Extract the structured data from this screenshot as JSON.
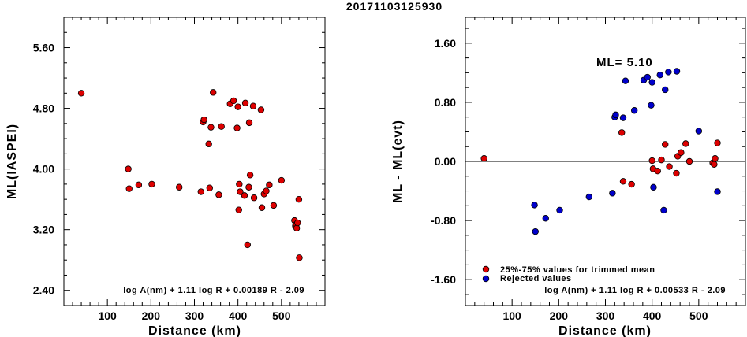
{
  "figure": {
    "title": "20171103125930"
  },
  "colors": {
    "accepted": "#dd0000",
    "rejected": "#0000cc",
    "axis": "#000000"
  },
  "chart_data": [
    {
      "type": "scatter",
      "xlabel": "Distance (km)",
      "ylabel": "ML(IASPEI)",
      "xlim": [
        0,
        600
      ],
      "ylim": [
        2.2,
        6.0
      ],
      "xticks": [
        100,
        200,
        300,
        400,
        500
      ],
      "xtick_labels": [
        "100",
        "200",
        "300",
        "400",
        "500"
      ],
      "yticks": [
        2.4,
        3.2,
        4.0,
        4.8,
        5.6
      ],
      "ytick_labels": [
        "2.40",
        "3.20",
        "4.00",
        "4.80",
        "5.60"
      ],
      "formula": "log A(nm) + 1.11 log R + 0.00189 R - 2.09",
      "series": [
        {
          "color": "#dd0000",
          "points": [
            [
              40,
              5.0
            ],
            [
              148,
              4.0
            ],
            [
              150,
              3.74
            ],
            [
              172,
              3.79
            ],
            [
              202,
              3.8
            ],
            [
              265,
              3.76
            ],
            [
              315,
              3.7
            ],
            [
              320,
              4.62
            ],
            [
              322,
              4.65
            ],
            [
              333,
              4.33
            ],
            [
              335,
              3.75
            ],
            [
              338,
              4.55
            ],
            [
              343,
              5.01
            ],
            [
              356,
              3.66
            ],
            [
              362,
              4.56
            ],
            [
              382,
              4.86
            ],
            [
              390,
              4.9
            ],
            [
              398,
              4.54
            ],
            [
              400,
              4.82
            ],
            [
              402,
              3.46
            ],
            [
              403,
              3.8
            ],
            [
              405,
              3.7
            ],
            [
              415,
              3.65
            ],
            [
              417,
              4.87
            ],
            [
              422,
              3.0
            ],
            [
              425,
              3.76
            ],
            [
              426,
              4.61
            ],
            [
              428,
              3.92
            ],
            [
              435,
              4.83
            ],
            [
              437,
              3.62
            ],
            [
              453,
              4.78
            ],
            [
              455,
              3.49
            ],
            [
              460,
              3.67
            ],
            [
              465,
              3.71
            ],
            [
              472,
              3.79
            ],
            [
              482,
              3.52
            ],
            [
              500,
              3.85
            ],
            [
              530,
              3.32
            ],
            [
              532,
              3.25
            ],
            [
              534,
              3.27
            ],
            [
              535,
              3.22
            ],
            [
              537,
              3.29
            ],
            [
              540,
              3.6
            ],
            [
              541,
              2.83
            ]
          ]
        }
      ]
    },
    {
      "type": "scatter",
      "xlabel": "Distance (km)",
      "ylabel": "ML - ML(evt)",
      "xlim": [
        0,
        600
      ],
      "ylim": [
        -1.95,
        1.95
      ],
      "xticks": [
        100,
        200,
        300,
        400,
        500
      ],
      "xtick_labels": [
        "100",
        "200",
        "300",
        "400",
        "500"
      ],
      "yticks": [
        -1.6,
        -0.8,
        0.0,
        0.8,
        1.6
      ],
      "ytick_labels": [
        "-1.60",
        "-0.80",
        "0.00",
        "0.80",
        "1.60"
      ],
      "reference_line": 0.0,
      "ml_label": "ML= 5.10",
      "formula": "log A(nm) + 1.11 log R + 0.00533 R - 2.09",
      "series": [
        {
          "name": "25%-75% values for trimmed mean",
          "color": "#dd0000",
          "points": [
            [
              40,
              0.04
            ],
            [
              335,
              0.39
            ],
            [
              338,
              -0.27
            ],
            [
              356,
              -0.31
            ],
            [
              400,
              0.01
            ],
            [
              402,
              -0.1
            ],
            [
              412,
              -0.13
            ],
            [
              420,
              0.02
            ],
            [
              428,
              0.23
            ],
            [
              437,
              -0.07
            ],
            [
              452,
              -0.16
            ],
            [
              455,
              0.07
            ],
            [
              462,
              0.12
            ],
            [
              472,
              0.24
            ],
            [
              480,
              0.0
            ],
            [
              530,
              -0.02
            ],
            [
              533,
              -0.04
            ],
            [
              535,
              0.04
            ],
            [
              540,
              0.25
            ]
          ]
        },
        {
          "name": "Rejected values",
          "color": "#0000cc",
          "points": [
            [
              148,
              -0.59
            ],
            [
              150,
              -0.95
            ],
            [
              172,
              -0.77
            ],
            [
              202,
              -0.66
            ],
            [
              265,
              -0.48
            ],
            [
              315,
              -0.43
            ],
            [
              320,
              0.6
            ],
            [
              322,
              0.63
            ],
            [
              338,
              0.59
            ],
            [
              343,
              1.09
            ],
            [
              362,
              0.69
            ],
            [
              382,
              1.1
            ],
            [
              390,
              1.14
            ],
            [
              398,
              0.76
            ],
            [
              400,
              1.07
            ],
            [
              403,
              -0.35
            ],
            [
              417,
              1.17
            ],
            [
              425,
              -0.66
            ],
            [
              428,
              0.97
            ],
            [
              435,
              1.21
            ],
            [
              453,
              1.22
            ],
            [
              500,
              0.41
            ],
            [
              540,
              -0.41
            ]
          ]
        }
      ]
    }
  ]
}
